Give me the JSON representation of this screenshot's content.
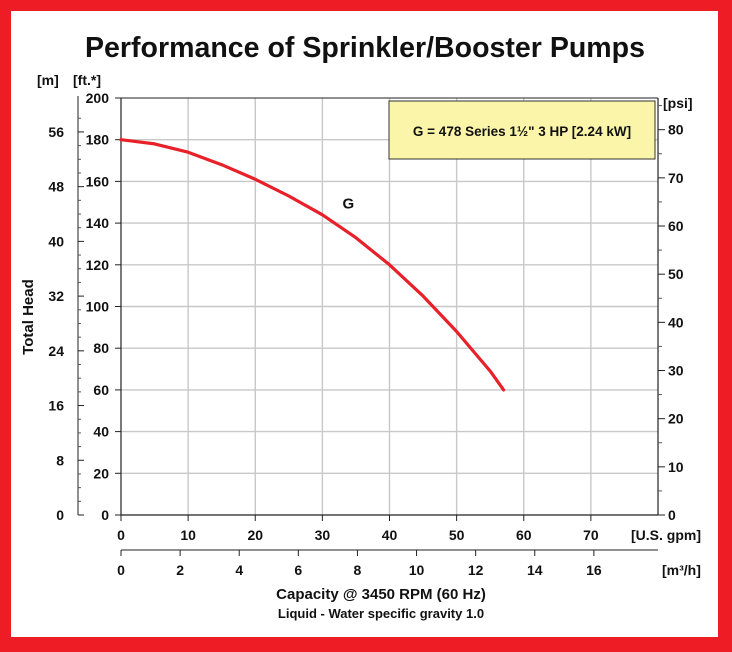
{
  "chart_data": {
    "type": "line",
    "title": "Performance of Sprinkler/Booster Pumps",
    "ylabel": "Total Head",
    "xlabel": "Capacity @ 3450 RPM (60 Hz)",
    "subtitle": "Liquid - Water specific gravity 1.0",
    "legend_text": "G = 478 Series 1½\" 3 HP [2.24 kW]",
    "legend_position": "top-right",
    "grid": true,
    "axes": {
      "y_ft": {
        "unit": "[ft.*]",
        "range": [
          0,
          200
        ],
        "ticks": [
          0,
          20,
          40,
          60,
          80,
          100,
          120,
          140,
          160,
          180,
          200
        ]
      },
      "y_m": {
        "unit": "[m]",
        "ticks": [
          0,
          8,
          16,
          24,
          32,
          40,
          48,
          56
        ],
        "ft_per_unit": 3.2808
      },
      "y_psi": {
        "unit": "[psi]",
        "ticks": [
          0,
          10,
          20,
          30,
          40,
          50,
          60,
          70,
          80
        ],
        "ft_per_unit": 2.31
      },
      "x_gpm": {
        "unit": "[U.S. gpm]",
        "range": [
          0,
          80
        ],
        "ticks": [
          0,
          10,
          20,
          30,
          40,
          50,
          60,
          70
        ]
      },
      "x_m3h": {
        "unit": "[m³/h]",
        "ticks": [
          0,
          2,
          4,
          6,
          8,
          10,
          12,
          14,
          16
        ],
        "gpm_per_unit": 4.4029
      }
    },
    "series": [
      {
        "name": "G",
        "color": "#e8202a",
        "x": [
          0,
          5,
          10,
          15,
          20,
          25,
          30,
          35,
          40,
          45,
          50,
          55,
          57
        ],
        "y": [
          180,
          178,
          174,
          168,
          161,
          153,
          144,
          133,
          120,
          105,
          88,
          69,
          60
        ]
      }
    ]
  }
}
